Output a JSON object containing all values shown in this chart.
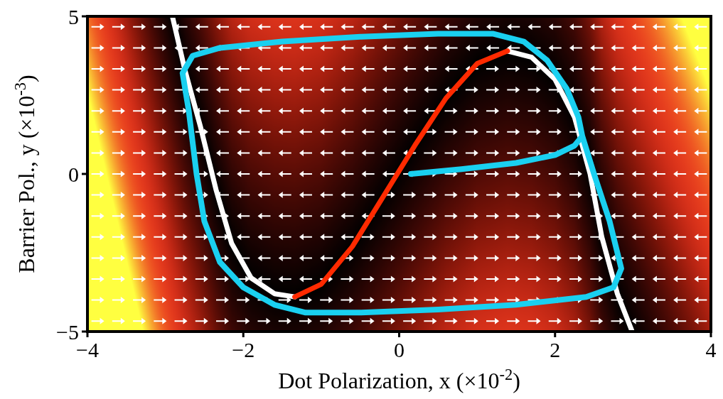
{
  "chart_data": {
    "type": "line",
    "xlabel": "Dot Polarization, x (×10$^{-2}$)",
    "ylabel": "Barrier Pol., y (×10$^{-3}$)",
    "xlim": [
      -4,
      4
    ],
    "ylim": [
      -5,
      5
    ],
    "xticks": [
      {
        "value": -4,
        "label": "−4"
      },
      {
        "value": -2,
        "label": "−2"
      },
      0,
      2,
      4
    ],
    "yticks": [
      {
        "value": -5,
        "label": "−5"
      },
      0,
      5
    ],
    "series": [
      {
        "color": "#ffffff",
        "x": [
          -2.91,
          -2.75,
          -2.55,
          -2.35,
          -2.15,
          -1.9,
          -1.6,
          -1.34,
          null,
          1.39,
          1.7,
          2.0,
          2.25,
          2.45,
          2.6,
          2.8,
          2.99
        ],
        "values": [
          5,
          3.3,
          1.5,
          -0.5,
          -2.2,
          -3.3,
          -3.8,
          -3.9,
          null,
          3.9,
          3.7,
          3.0,
          1.8,
          0,
          -2,
          -3.8,
          -5
        ]
      },
      {
        "color": "#ff2a00",
        "x": [
          -1.34,
          -1.0,
          -0.6,
          -0.2,
          0.2,
          0.6,
          1.0,
          1.39
        ],
        "values": [
          -3.9,
          -3.5,
          -2.3,
          -0.7,
          0.9,
          2.4,
          3.5,
          3.9
        ]
      },
      {
        "color": "#1ad0f0",
        "x": [
          0.15,
          0.8,
          1.5,
          2.0,
          2.25,
          2.35,
          2.3,
          2.15,
          1.9,
          1.6,
          1.2,
          0.5,
          -0.5,
          -1.5,
          -2.3,
          -2.65,
          -2.78,
          -2.7,
          -2.6,
          -2.5,
          -2.3,
          -2.0,
          -1.6,
          -1.2,
          -0.5,
          0.5,
          1.5,
          2.4,
          2.75,
          2.85,
          2.7,
          2.5,
          2.35
        ],
        "values": [
          0,
          0.15,
          0.35,
          0.6,
          0.9,
          1.2,
          1.8,
          2.7,
          3.6,
          4.2,
          4.45,
          4.45,
          4.35,
          4.2,
          4.0,
          3.75,
          3.2,
          2.0,
          0,
          -1.5,
          -2.8,
          -3.6,
          -4.15,
          -4.4,
          -4.4,
          -4.3,
          -4.15,
          -3.9,
          -3.6,
          -3.0,
          -1.5,
          0,
          1.2
        ]
      }
    ],
    "grid": false
  }
}
